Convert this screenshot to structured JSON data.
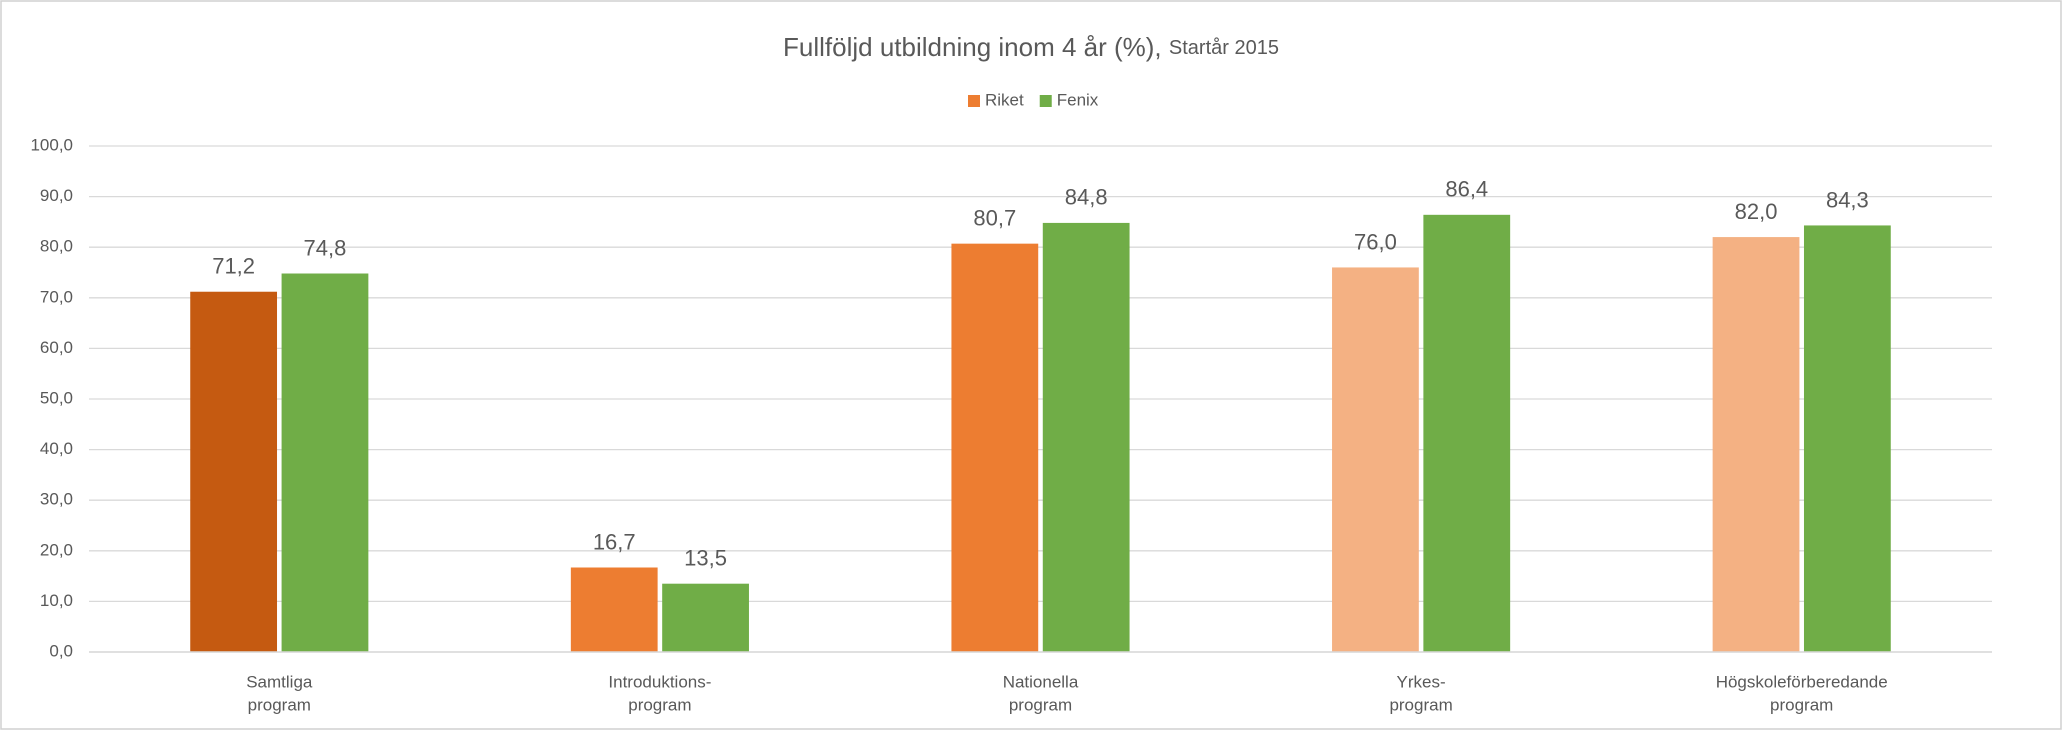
{
  "chart_data": {
    "type": "bar",
    "title": "Fullföljd utbildning inom 4 år (%),",
    "subtitle": "Startår 2015",
    "categories": [
      [
        "Samtliga",
        "program"
      ],
      [
        "Introduktions-",
        "program"
      ],
      [
        "Nationella",
        "program"
      ],
      [
        "Yrkes-",
        "program"
      ],
      [
        "Högskoleförberedande",
        "program"
      ]
    ],
    "series": [
      {
        "name": "Riket",
        "color": "#ed7d31",
        "colors": [
          "#c55a11",
          "#ed7d31",
          "#ed7d31",
          "#f4b183",
          "#f4b183"
        ],
        "values": [
          71.2,
          16.7,
          80.7,
          76.0,
          82.0
        ],
        "value_labels": [
          "71,2",
          "16,7",
          "80,7",
          "76,0",
          "82,0"
        ]
      },
      {
        "name": "Fenix",
        "color": "#70ad47",
        "colors": [
          "#70ad47",
          "#70ad47",
          "#70ad47",
          "#70ad47",
          "#70ad47"
        ],
        "values": [
          74.8,
          13.5,
          84.8,
          86.4,
          84.3
        ],
        "value_labels": [
          "74,8",
          "13,5",
          "84,8",
          "86,4",
          "84,3"
        ]
      }
    ],
    "ylim": [
      0,
      100
    ],
    "yticks": [
      {
        "value": 0,
        "label": "0,0"
      },
      {
        "value": 10,
        "label": "10,0"
      },
      {
        "value": 20,
        "label": "20,0"
      },
      {
        "value": 30,
        "label": "30,0"
      },
      {
        "value": 40,
        "label": "40,0"
      },
      {
        "value": 50,
        "label": "50,0"
      },
      {
        "value": 60,
        "label": "60,0"
      },
      {
        "value": 70,
        "label": "70,0"
      },
      {
        "value": 80,
        "label": "80,0"
      },
      {
        "value": 90,
        "label": "90,0"
      },
      {
        "value": 100,
        "label": "100,0"
      }
    ],
    "grid": true,
    "legend": "top"
  }
}
